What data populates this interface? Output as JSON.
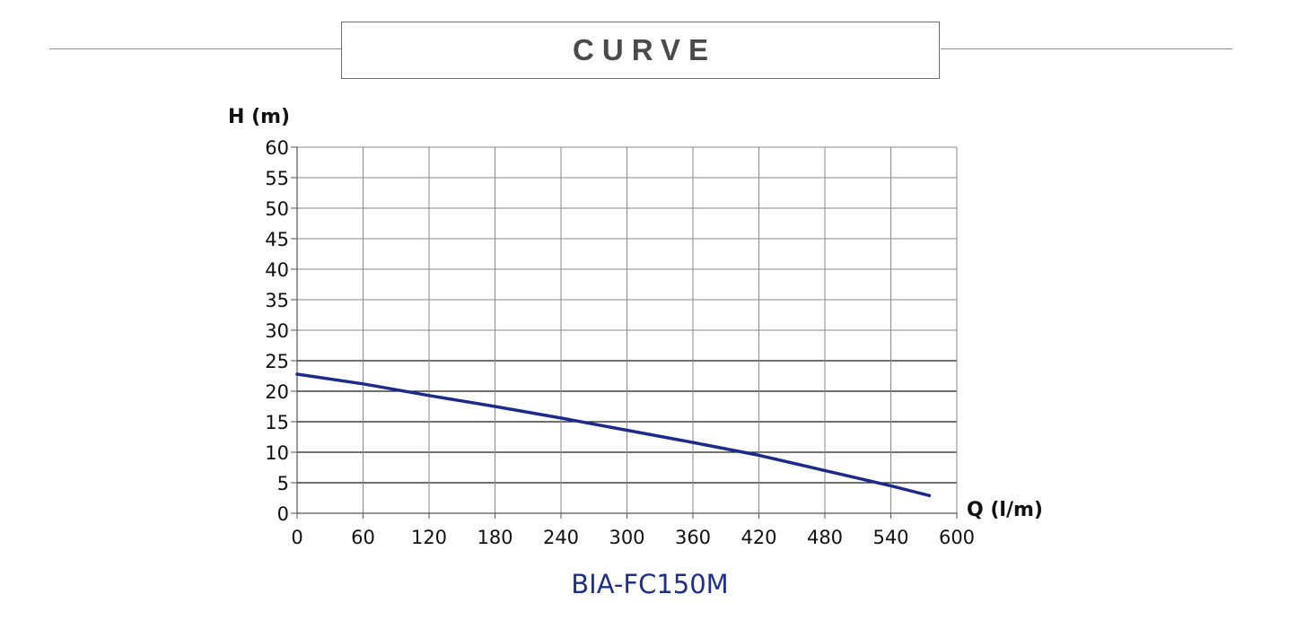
{
  "header": {
    "title": "CURVE"
  },
  "chart_data": {
    "type": "line",
    "title": "BIA-FC150M",
    "xlabel": "Q (l/m)",
    "ylabel": "H (m)",
    "xlim": [
      0,
      600
    ],
    "ylim": [
      0,
      60
    ],
    "xticks": [
      0,
      60,
      120,
      180,
      240,
      300,
      360,
      420,
      480,
      540,
      600
    ],
    "yticks": [
      0,
      5,
      10,
      15,
      20,
      25,
      30,
      35,
      40,
      45,
      50,
      55,
      60
    ],
    "grid": true,
    "series": [
      {
        "color": "#1c2a8c",
        "x": [
          0,
          60,
          120,
          180,
          240,
          300,
          360,
          420,
          480,
          540,
          575
        ],
        "y": [
          22.8,
          21.2,
          19.3,
          17.5,
          15.6,
          13.6,
          11.6,
          9.5,
          7.0,
          4.5,
          2.9
        ]
      }
    ]
  }
}
